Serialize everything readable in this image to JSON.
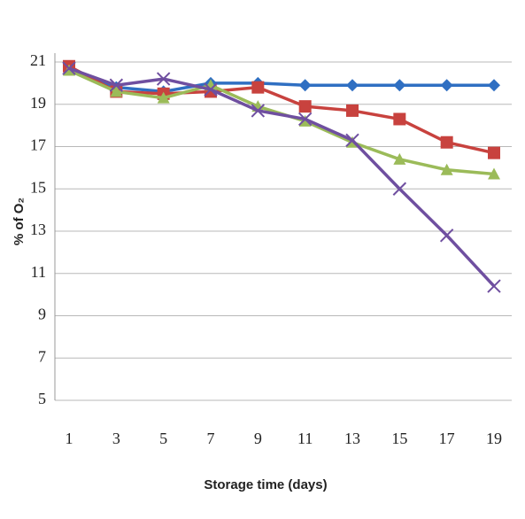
{
  "chart_data": {
    "type": "line",
    "x_label": "Storage time (days)",
    "y_label": "% of O₂",
    "x": [
      1,
      3,
      5,
      7,
      9,
      11,
      13,
      15,
      17,
      19
    ],
    "xlim": [
      1,
      19
    ],
    "xticks": [
      1,
      3,
      5,
      7,
      9,
      11,
      13,
      15,
      17,
      19
    ],
    "ylim": [
      5,
      21
    ],
    "yticks": [
      5,
      7,
      9,
      11,
      13,
      15,
      17,
      19,
      21
    ],
    "grid": true,
    "series": [
      {
        "color": "#2f6fc2",
        "marker": "diamond",
        "values": [
          20.7,
          19.8,
          19.6,
          20.0,
          20.0,
          19.9,
          19.9,
          19.9,
          19.9,
          19.9
        ]
      },
      {
        "color": "#c8423e",
        "marker": "square",
        "values": [
          20.8,
          19.6,
          19.5,
          19.6,
          19.8,
          18.9,
          18.7,
          18.3,
          17.2,
          16.7
        ]
      },
      {
        "color": "#9bbb59",
        "marker": "triangle",
        "values": [
          20.6,
          19.6,
          19.3,
          19.9,
          18.9,
          18.2,
          17.2,
          16.4,
          15.9,
          15.7
        ]
      },
      {
        "color": "#6f4fa0",
        "marker": "cross",
        "values": [
          20.7,
          19.9,
          20.2,
          19.7,
          18.7,
          18.3,
          17.3,
          15.0,
          12.8,
          10.4
        ]
      }
    ]
  }
}
